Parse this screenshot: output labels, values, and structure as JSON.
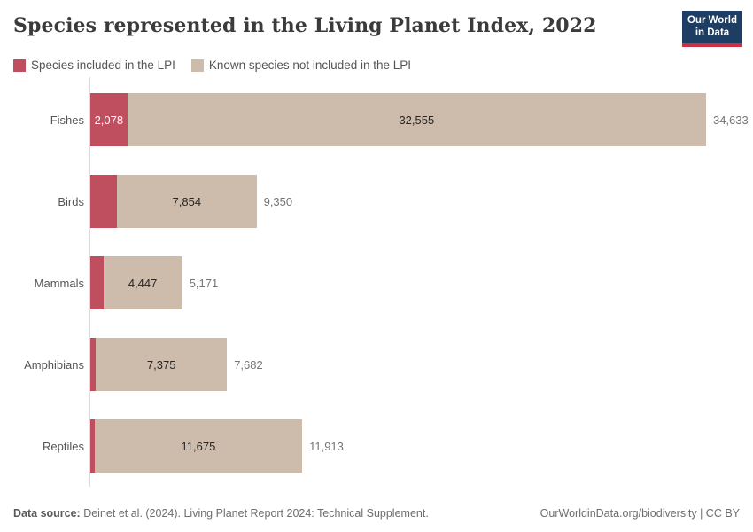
{
  "header": {
    "title": "Species represented in the Living Planet Index, 2022",
    "logo": {
      "line1": "Our World",
      "line2": "in Data",
      "bg_color": "#1d3d63",
      "accent_color": "#cc2e43"
    }
  },
  "legend": {
    "items": [
      {
        "label": "Species included in the LPI",
        "color": "#bf4e5e"
      },
      {
        "label": "Known species not included in the LPI",
        "color": "#cdbcab"
      }
    ]
  },
  "chart_data": {
    "type": "bar",
    "orientation": "horizontal",
    "stacked": true,
    "title": "Species represented in the Living Planet Index, 2022",
    "categories": [
      "Fishes",
      "Birds",
      "Mammals",
      "Amphibians",
      "Reptiles"
    ],
    "series": [
      {
        "name": "Species included in the LPI",
        "color": "#bf4e5e",
        "values": [
          2078,
          1496,
          724,
          307,
          238
        ]
      },
      {
        "name": "Known species not included in the LPI",
        "color": "#cdbcab",
        "values": [
          32555,
          7854,
          4447,
          7375,
          11675
        ]
      }
    ],
    "totals": [
      34633,
      9350,
      5171,
      7682,
      11913
    ],
    "bar_labels": {
      "included": [
        "2,078",
        "",
        "",
        "",
        ""
      ],
      "not_included": [
        "32,555",
        "7,854",
        "4,447",
        "7,375",
        "11,675"
      ],
      "totals": [
        "34,633",
        "9,350",
        "5,171",
        "7,682",
        "11,913"
      ]
    },
    "xlim": [
      0,
      34633
    ],
    "grid": false,
    "legend_position": "top"
  },
  "footer": {
    "source_label": "Data source:",
    "source_text": " Deinet et al. (2024). Living Planet Report 2024: Technical Supplement.",
    "credit": "OurWorldinData.org/biodiversity | CC BY"
  }
}
